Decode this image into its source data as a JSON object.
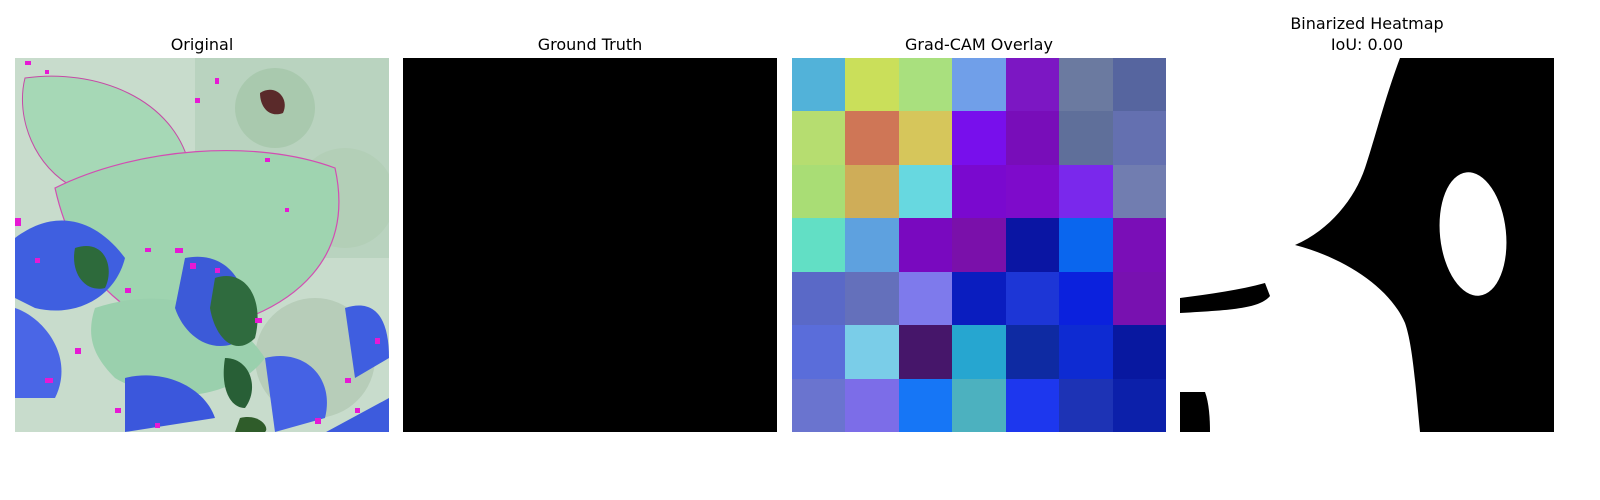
{
  "panels": [
    {
      "title": "Original"
    },
    {
      "title": "Ground Truth"
    },
    {
      "title": "Grad-CAM Overlay"
    },
    {
      "title": "Binarized Heatmap",
      "subtitle": "IoU: 0.00"
    }
  ],
  "gradcam": {
    "rows": [
      [
        "#52B2D9",
        "#CADF5A",
        "#A9E07E",
        "#709FE9",
        "#7C17C3",
        "#6B7AA0",
        "#56659F"
      ],
      [
        "#B6DD70",
        "#CF7656",
        "#D6C65B",
        "#780FEC",
        "#780DB9",
        "#5F6F9A",
        "#6470B0"
      ],
      [
        "#A9DD75",
        "#CFAD58",
        "#67D8E0",
        "#7A09CF",
        "#7E0BCB",
        "#7A28EC",
        "#717DB0"
      ],
      [
        "#62DFC5",
        "#5EA1DF",
        "#7909BF",
        "#7A10AA",
        "#0A15A3",
        "#0A66EE",
        "#7A0EB7"
      ],
      [
        "#5A69C7",
        "#6470BB",
        "#7E7AEC",
        "#0A1DBF",
        "#1D36D6",
        "#0B21DD",
        "#7811B0"
      ],
      [
        "#5A6DDA",
        "#7ACDE8",
        "#46166A",
        "#26A6D0",
        "#0E2AA2",
        "#0E2BD2",
        "#0818A0"
      ],
      [
        "#6A74CF",
        "#7C6DE8",
        "#1676F6",
        "#4CB1BF",
        "#1D37EE",
        "#1D33B5",
        "#0C20AA"
      ]
    ]
  }
}
